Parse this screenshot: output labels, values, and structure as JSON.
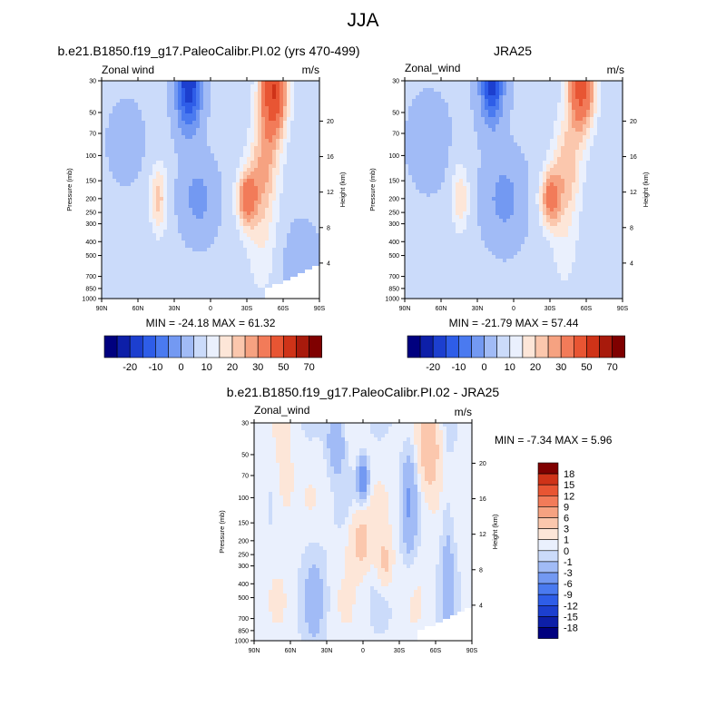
{
  "title": "JJA",
  "scales": {
    "full_levels": [
      -25,
      -20,
      -15,
      -10,
      -5,
      0,
      5,
      10,
      15,
      20,
      25,
      30,
      40,
      50,
      60,
      70
    ],
    "full_colors": [
      "#00007f",
      "#0d1fa8",
      "#1c3fcf",
      "#2e5de8",
      "#4a7af0",
      "#7399f2",
      "#a1bbf6",
      "#cbdbfa",
      "#eaf0fd",
      "#fde6d8",
      "#fbc7ad",
      "#f6a281",
      "#f27b59",
      "#e85533",
      "#cf3318",
      "#a81a0c",
      "#7f0000"
    ],
    "full_colorbar_labels": [
      "-20",
      "-10",
      "0",
      "10",
      "20",
      "30",
      "50",
      "70"
    ],
    "diff_levels": [
      -18,
      -15,
      -12,
      -9,
      -6,
      -3,
      -1,
      0,
      1,
      3,
      6,
      9,
      12,
      15,
      18
    ],
    "diff_colors": [
      "#00007f",
      "#0d1fa8",
      "#1c3fcf",
      "#2e5de8",
      "#4a7af0",
      "#7399f2",
      "#a1bbf6",
      "#cbdbfa",
      "#eaf0fd",
      "#fde6d8",
      "#fbc7ad",
      "#f6a281",
      "#f27b59",
      "#e85533",
      "#cf3318",
      "#7f0000"
    ],
    "diff_colorbar_labels": [
      "18",
      "15",
      "12",
      "9",
      "6",
      "3",
      "1",
      "0",
      "-1",
      "-3",
      "-6",
      "-9",
      "-12",
      "-15",
      "-18"
    ]
  },
  "panels": [
    {
      "id": "model",
      "title": "b.e21.B1850.f19_g17.PaleoCalibr.PI.02 (yrs 470-499)",
      "var_label": "Zonal wind",
      "units": "m/s",
      "min_max": "MIN = -24.18  MAX =  61.32"
    },
    {
      "id": "obs",
      "title": "JRA25",
      "var_label": "Zonal_wind",
      "units": "m/s",
      "min_max": "MIN = -21.79  MAX =  57.44"
    },
    {
      "id": "diff",
      "title": "b.e21.B1850.f19_g17.PaleoCalibr.PI.02 - JRA25",
      "var_label": "Zonal_wind",
      "units": "m/s",
      "min_max": "MIN =  -7.34  MAX =   5.96"
    }
  ],
  "axes": {
    "x_tick_labels": [
      "90N",
      "60N",
      "30N",
      "0",
      "30S",
      "60S",
      "90S"
    ],
    "y_tick_labels": [
      "30",
      "50",
      "70",
      "100",
      "150",
      "200",
      "250",
      "300",
      "400",
      "500",
      "700",
      "850",
      "1000"
    ],
    "y_label": "Pressure (mb)",
    "height_tick_labels": [
      "20",
      "16",
      "12",
      "8",
      "4"
    ],
    "height_label": "Height (km)"
  },
  "chart_data": [
    {
      "type": "heatmap",
      "title": "b.e21.B1850.f19_g17.PaleoCalibr.PI.02 (yrs 470-499)",
      "field": "Zonal wind",
      "units": "m/s",
      "x": [
        "90N",
        "60N",
        "30N",
        "0",
        "30S",
        "60S",
        "90S"
      ],
      "y_pressure_mb": [
        30,
        50,
        70,
        100,
        150,
        200,
        250,
        300,
        400,
        500,
        700,
        850,
        1000
      ],
      "y_height_km": [
        20,
        16,
        12,
        8,
        4
      ],
      "ylabel": "Pressure (mb)",
      "ylabel_right": "Height (km)",
      "min": -24.18,
      "max": 61.32,
      "features": [
        {
          "type": "min",
          "lat": 18,
          "p": 35,
          "value": -24
        },
        {
          "type": "max",
          "lat": -50,
          "p": 32,
          "value": 61
        },
        {
          "type": "max",
          "lat": -28,
          "p": 200,
          "value": 40
        },
        {
          "type": "max",
          "lat": 43,
          "p": 200,
          "value": 22
        },
        {
          "type": "min",
          "lat": 0,
          "p": 200,
          "value": -8
        }
      ]
    },
    {
      "type": "heatmap",
      "title": "JRA25",
      "field": "Zonal_wind",
      "units": "m/s",
      "x": [
        "90N",
        "60N",
        "30N",
        "0",
        "30S",
        "60S",
        "90S"
      ],
      "y_pressure_mb": [
        30,
        50,
        70,
        100,
        150,
        200,
        250,
        300,
        400,
        500,
        700,
        850,
        1000
      ],
      "y_height_km": [
        20,
        16,
        12,
        8,
        4
      ],
      "ylabel": "Pressure (mb)",
      "ylabel_right": "Height (km)",
      "min": -21.79,
      "max": 57.44,
      "features": [
        {
          "type": "min",
          "lat": 18,
          "p": 32,
          "value": -22
        },
        {
          "type": "max",
          "lat": -60,
          "p": 30,
          "value": 57
        },
        {
          "type": "max",
          "lat": -28,
          "p": 200,
          "value": 38
        },
        {
          "type": "max",
          "lat": 43,
          "p": 200,
          "value": 20
        },
        {
          "type": "min",
          "lat": 0,
          "p": 200,
          "value": -8
        }
      ]
    },
    {
      "type": "heatmap",
      "title": "b.e21.B1850.f19_g17.PaleoCalibr.PI.02 - JRA25",
      "field": "Zonal_wind",
      "units": "m/s",
      "x": [
        "90N",
        "60N",
        "30N",
        "0",
        "30S",
        "60S",
        "90S"
      ],
      "y_pressure_mb": [
        30,
        50,
        70,
        100,
        150,
        200,
        250,
        300,
        400,
        500,
        700,
        850,
        1000
      ],
      "y_height_km": [
        20,
        16,
        12,
        8,
        4
      ],
      "ylabel": "Pressure (mb)",
      "ylabel_right": "Height (km)",
      "min": -7.34,
      "max": 5.96,
      "features": [
        {
          "type": "max",
          "lat": -55,
          "p": 45,
          "value": 6
        },
        {
          "type": "max",
          "lat": 2,
          "p": 200,
          "value": 5
        },
        {
          "type": "max",
          "lat": -18,
          "p": 280,
          "value": 5
        },
        {
          "type": "min",
          "lat": 0,
          "p": 75,
          "value": -7
        },
        {
          "type": "min",
          "lat": 22,
          "p": 40,
          "value": -4
        },
        {
          "type": "min",
          "lat": -38,
          "p": 100,
          "value": -3
        }
      ]
    }
  ]
}
